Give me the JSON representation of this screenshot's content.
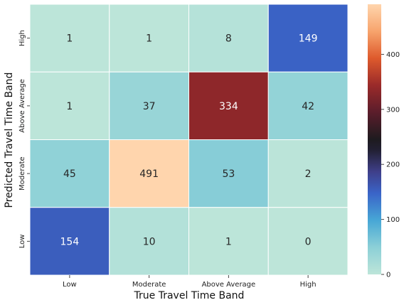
{
  "chart_data": {
    "type": "heatmap",
    "xlabel": "True Travel Time Band",
    "ylabel": "Predicted Travel Time Band",
    "x_categories": [
      "Low",
      "Moderate",
      "Above Average",
      "High"
    ],
    "y_categories_top_to_bottom": [
      "High",
      "Above Average",
      "Moderate",
      "Low"
    ],
    "values": [
      [
        1,
        1,
        8,
        149
      ],
      [
        1,
        37,
        334,
        42
      ],
      [
        45,
        491,
        53,
        2
      ],
      [
        154,
        10,
        1,
        0
      ]
    ],
    "colorbar": {
      "ticks": [
        0,
        100,
        200,
        300,
        400,
        500
      ],
      "range": [
        0,
        491
      ],
      "colormap": "icefire"
    }
  }
}
